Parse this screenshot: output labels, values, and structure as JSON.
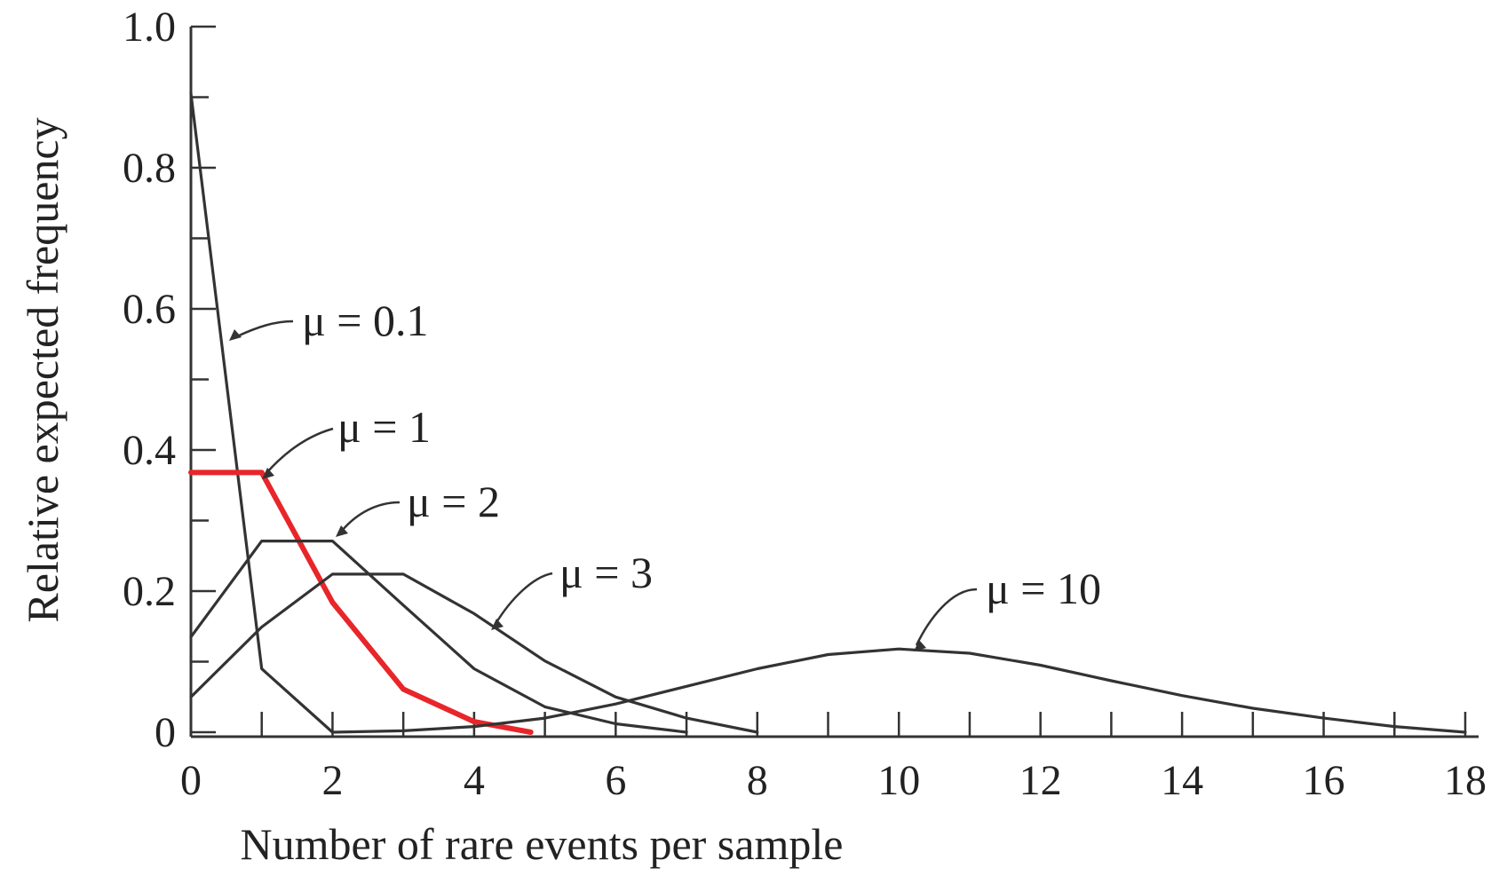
{
  "chart_data": {
    "type": "line",
    "xlabel": "Number of rare events per sample",
    "ylabel": "Relative expected frequency",
    "xlim": [
      0,
      18
    ],
    "ylim": [
      0,
      1.0
    ],
    "x_ticks": [
      "0",
      "2",
      "4",
      "6",
      "8",
      "10",
      "12",
      "14",
      "16",
      "18"
    ],
    "y_ticks": [
      "0",
      "0.2",
      "0.4",
      "0.6",
      "0.8",
      "1.0"
    ],
    "grid": false,
    "legend": "none",
    "series": [
      {
        "name": "μ = 0.1",
        "color": "#333333",
        "x": [
          0,
          1,
          2
        ],
        "y": [
          0.905,
          0.09,
          0.0
        ]
      },
      {
        "name": "μ = 1",
        "color": "#e8262a",
        "x": [
          0,
          1,
          2,
          3,
          4,
          4.8
        ],
        "y": [
          0.368,
          0.368,
          0.184,
          0.061,
          0.015,
          0.0
        ]
      },
      {
        "name": "μ = 2",
        "color": "#333333",
        "x": [
          0,
          1,
          2,
          3,
          4,
          5,
          6,
          7
        ],
        "y": [
          0.135,
          0.271,
          0.271,
          0.18,
          0.09,
          0.036,
          0.012,
          0.0
        ]
      },
      {
        "name": "μ = 3",
        "color": "#333333",
        "x": [
          0,
          1,
          2,
          3,
          4,
          5,
          6,
          7,
          8
        ],
        "y": [
          0.05,
          0.149,
          0.224,
          0.224,
          0.168,
          0.101,
          0.05,
          0.02,
          0.0
        ]
      },
      {
        "name": "μ = 10",
        "color": "#333333",
        "x": [
          2,
          3,
          4,
          5,
          6,
          7,
          8,
          9,
          10,
          11,
          12,
          13,
          14,
          15,
          16,
          17,
          18
        ],
        "y": [
          0.0,
          0.002,
          0.008,
          0.02,
          0.04,
          0.065,
          0.09,
          0.11,
          0.118,
          0.112,
          0.095,
          0.073,
          0.052,
          0.034,
          0.02,
          0.008,
          0.0
        ]
      }
    ],
    "annotations": [
      {
        "text": "μ = 0.1",
        "series": 0
      },
      {
        "text": "μ = 1",
        "series": 1
      },
      {
        "text": "μ = 2",
        "series": 2
      },
      {
        "text": "μ = 3",
        "series": 3
      },
      {
        "text": "μ = 10",
        "series": 4
      }
    ]
  }
}
